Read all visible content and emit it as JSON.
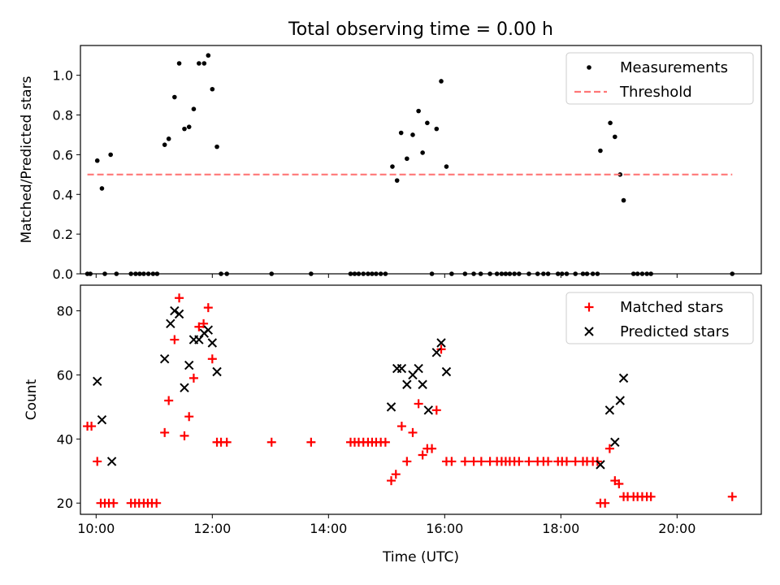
{
  "chart_data": [
    {
      "type": "scatter",
      "title": "Total observing time = 0.00 h",
      "xlabel": "",
      "ylabel": "Matched/Predicted stars",
      "xlim": [
        9.73,
        21.45
      ],
      "ylim": [
        0,
        1.15
      ],
      "xticks": [
        10,
        12,
        14,
        16,
        18,
        20
      ],
      "yticks": [
        0.0,
        0.2,
        0.4,
        0.6,
        0.8,
        1.0
      ],
      "ytick_labels": [
        "0.0",
        "0.2",
        "0.4",
        "0.6",
        "0.8",
        "1.0"
      ],
      "legend": {
        "placement": "top-right"
      },
      "series": [
        {
          "name": "Measurements",
          "color": "#000000",
          "marker": "dot",
          "points": [
            [
              9.85,
              0
            ],
            [
              9.9,
              0
            ],
            [
              10.02,
              0.57
            ],
            [
              10.1,
              0.43
            ],
            [
              10.15,
              0
            ],
            [
              10.25,
              0.6
            ],
            [
              10.35,
              0
            ],
            [
              10.6,
              0
            ],
            [
              10.68,
              0
            ],
            [
              10.75,
              0
            ],
            [
              10.82,
              0
            ],
            [
              10.9,
              0
            ],
            [
              10.98,
              0
            ],
            [
              11.05,
              0
            ],
            [
              11.18,
              0.65
            ],
            [
              11.25,
              0.68
            ],
            [
              11.35,
              0.89
            ],
            [
              11.43,
              1.06
            ],
            [
              11.52,
              0.73
            ],
            [
              11.6,
              0.74
            ],
            [
              11.68,
              0.83
            ],
            [
              11.77,
              1.06
            ],
            [
              11.86,
              1.06
            ],
            [
              11.93,
              1.1
            ],
            [
              12.0,
              0.93
            ],
            [
              12.08,
              0.64
            ],
            [
              12.15,
              0
            ],
            [
              12.25,
              0
            ],
            [
              13.02,
              0
            ],
            [
              13.7,
              0
            ],
            [
              14.38,
              0
            ],
            [
              14.45,
              0
            ],
            [
              14.52,
              0
            ],
            [
              14.6,
              0
            ],
            [
              14.68,
              0
            ],
            [
              14.75,
              0
            ],
            [
              14.82,
              0
            ],
            [
              14.9,
              0
            ],
            [
              14.98,
              0
            ],
            [
              15.1,
              0.54
            ],
            [
              15.18,
              0.47
            ],
            [
              15.25,
              0.71
            ],
            [
              15.35,
              0.58
            ],
            [
              15.45,
              0.7
            ],
            [
              15.55,
              0.82
            ],
            [
              15.62,
              0.61
            ],
            [
              15.7,
              0.76
            ],
            [
              15.78,
              0
            ],
            [
              15.86,
              0.73
            ],
            [
              15.94,
              0.97
            ],
            [
              16.03,
              0.54
            ],
            [
              16.12,
              0
            ],
            [
              16.35,
              0
            ],
            [
              16.5,
              0
            ],
            [
              16.62,
              0
            ],
            [
              16.78,
              0
            ],
            [
              16.9,
              0
            ],
            [
              16.98,
              0
            ],
            [
              17.05,
              0
            ],
            [
              17.12,
              0
            ],
            [
              17.2,
              0
            ],
            [
              17.28,
              0
            ],
            [
              17.45,
              0
            ],
            [
              17.6,
              0
            ],
            [
              17.7,
              0
            ],
            [
              17.78,
              0
            ],
            [
              17.95,
              0
            ],
            [
              18.02,
              0
            ],
            [
              18.1,
              0
            ],
            [
              18.25,
              0
            ],
            [
              18.38,
              0
            ],
            [
              18.45,
              0
            ],
            [
              18.55,
              0
            ],
            [
              18.63,
              0
            ],
            [
              18.68,
              0.62
            ],
            [
              18.85,
              0.76
            ],
            [
              18.93,
              0.69
            ],
            [
              19.02,
              0.5
            ],
            [
              19.08,
              0.37
            ],
            [
              19.25,
              0
            ],
            [
              19.32,
              0
            ],
            [
              19.4,
              0
            ],
            [
              19.48,
              0
            ],
            [
              19.55,
              0
            ],
            [
              20.95,
              0
            ]
          ]
        },
        {
          "name": "Threshold",
          "color": "#ff7777",
          "style": "dashed",
          "points": [
            [
              9.85,
              0.5
            ],
            [
              20.95,
              0.5
            ]
          ]
        }
      ]
    },
    {
      "type": "scatter",
      "title": "",
      "xlabel": "Time (UTC)",
      "ylabel": "Count",
      "xlim": [
        9.73,
        21.45
      ],
      "ylim": [
        16.5,
        88
      ],
      "xticks": [
        10,
        12,
        14,
        16,
        18,
        20
      ],
      "xtick_labels": [
        "10:00",
        "12:00",
        "14:00",
        "16:00",
        "18:00",
        "20:00"
      ],
      "yticks": [
        20,
        40,
        60,
        80
      ],
      "ytick_labels": [
        "20",
        "40",
        "60",
        "80"
      ],
      "legend": {
        "placement": "top-right"
      },
      "series": [
        {
          "name": "Matched stars",
          "color": "#ff0000",
          "marker": "plus",
          "points": [
            [
              9.85,
              44
            ],
            [
              9.92,
              44
            ],
            [
              10.02,
              33
            ],
            [
              10.08,
              20
            ],
            [
              10.15,
              20
            ],
            [
              10.22,
              20
            ],
            [
              10.3,
              20
            ],
            [
              10.6,
              20
            ],
            [
              10.67,
              20
            ],
            [
              10.74,
              20
            ],
            [
              10.82,
              20
            ],
            [
              10.89,
              20
            ],
            [
              10.96,
              20
            ],
            [
              11.04,
              20
            ],
            [
              11.18,
              42
            ],
            [
              11.25,
              52
            ],
            [
              11.35,
              71
            ],
            [
              11.43,
              84
            ],
            [
              11.52,
              41
            ],
            [
              11.6,
              47
            ],
            [
              11.68,
              59
            ],
            [
              11.77,
              75
            ],
            [
              11.85,
              76
            ],
            [
              11.93,
              81
            ],
            [
              12.0,
              65
            ],
            [
              12.08,
              39
            ],
            [
              12.15,
              39
            ],
            [
              12.25,
              39
            ],
            [
              13.02,
              39
            ],
            [
              13.7,
              39
            ],
            [
              14.38,
              39
            ],
            [
              14.45,
              39
            ],
            [
              14.52,
              39
            ],
            [
              14.6,
              39
            ],
            [
              14.68,
              39
            ],
            [
              14.75,
              39
            ],
            [
              14.82,
              39
            ],
            [
              14.9,
              39
            ],
            [
              14.98,
              39
            ],
            [
              15.08,
              27
            ],
            [
              15.16,
              29
            ],
            [
              15.26,
              44
            ],
            [
              15.35,
              33
            ],
            [
              15.45,
              42
            ],
            [
              15.55,
              51
            ],
            [
              15.62,
              35
            ],
            [
              15.7,
              37
            ],
            [
              15.78,
              37
            ],
            [
              15.86,
              49
            ],
            [
              15.94,
              68
            ],
            [
              16.03,
              33
            ],
            [
              16.12,
              33
            ],
            [
              16.35,
              33
            ],
            [
              16.5,
              33
            ],
            [
              16.63,
              33
            ],
            [
              16.78,
              33
            ],
            [
              16.9,
              33
            ],
            [
              16.98,
              33
            ],
            [
              17.05,
              33
            ],
            [
              17.12,
              33
            ],
            [
              17.2,
              33
            ],
            [
              17.28,
              33
            ],
            [
              17.45,
              33
            ],
            [
              17.6,
              33
            ],
            [
              17.7,
              33
            ],
            [
              17.78,
              33
            ],
            [
              17.95,
              33
            ],
            [
              18.02,
              33
            ],
            [
              18.1,
              33
            ],
            [
              18.25,
              33
            ],
            [
              18.38,
              33
            ],
            [
              18.45,
              33
            ],
            [
              18.55,
              33
            ],
            [
              18.63,
              33
            ],
            [
              18.68,
              20
            ],
            [
              18.76,
              20
            ],
            [
              18.84,
              37
            ],
            [
              18.93,
              27
            ],
            [
              19.0,
              26
            ],
            [
              19.08,
              22
            ],
            [
              19.15,
              22
            ],
            [
              19.25,
              22
            ],
            [
              19.32,
              22
            ],
            [
              19.4,
              22
            ],
            [
              19.48,
              22
            ],
            [
              19.55,
              22
            ],
            [
              20.95,
              22
            ]
          ]
        },
        {
          "name": "Predicted stars",
          "color": "#000000",
          "marker": "x",
          "points": [
            [
              10.02,
              58
            ],
            [
              10.1,
              46
            ],
            [
              10.27,
              33
            ],
            [
              11.18,
              65
            ],
            [
              11.28,
              76
            ],
            [
              11.35,
              80
            ],
            [
              11.43,
              79
            ],
            [
              11.52,
              56
            ],
            [
              11.6,
              63
            ],
            [
              11.68,
              71
            ],
            [
              11.77,
              71
            ],
            [
              11.86,
              73
            ],
            [
              11.93,
              74
            ],
            [
              12.0,
              70
            ],
            [
              12.08,
              61
            ],
            [
              15.08,
              50
            ],
            [
              15.18,
              62
            ],
            [
              15.26,
              62
            ],
            [
              15.35,
              57
            ],
            [
              15.45,
              60
            ],
            [
              15.55,
              62
            ],
            [
              15.62,
              57
            ],
            [
              15.72,
              49
            ],
            [
              15.86,
              67
            ],
            [
              15.94,
              70
            ],
            [
              16.03,
              61
            ],
            [
              18.68,
              32
            ],
            [
              18.84,
              49
            ],
            [
              18.93,
              39
            ],
            [
              19.02,
              52
            ],
            [
              19.08,
              59
            ]
          ]
        }
      ]
    }
  ]
}
